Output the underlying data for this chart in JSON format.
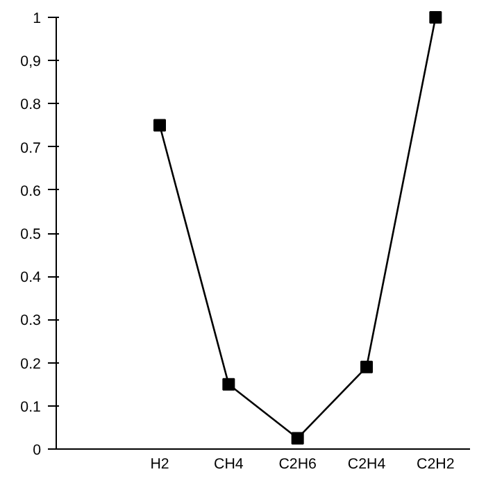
{
  "chart_data": {
    "type": "line",
    "categories": [
      null,
      "H2",
      "CH4",
      "C2H6",
      "C2H4",
      "C2H2"
    ],
    "series": [
      {
        "color": "#000000",
        "values": [
          null,
          0.75,
          0.15,
          0.025,
          0.19,
          1.0
        ]
      }
    ],
    "ylim": [
      0,
      1
    ],
    "yticks": [
      0,
      {
        "value": 0.1,
        "label": "0.1"
      },
      {
        "value": 0.2,
        "label": "0.2"
      },
      {
        "value": 0.3,
        "label": "0.3"
      },
      {
        "value": 0.4,
        "label": "0.4"
      },
      {
        "value": 0.5,
        "label": "0.5"
      },
      {
        "value": 0.6,
        "label": "0.6"
      },
      {
        "value": 0.7,
        "label": "0.7"
      },
      {
        "value": 0.8,
        "label": "0.8"
      },
      {
        "value": 0.9,
        "label": "0,9"
      },
      1
    ],
    "marker": "square",
    "line_style": "solid",
    "grid": false
  }
}
